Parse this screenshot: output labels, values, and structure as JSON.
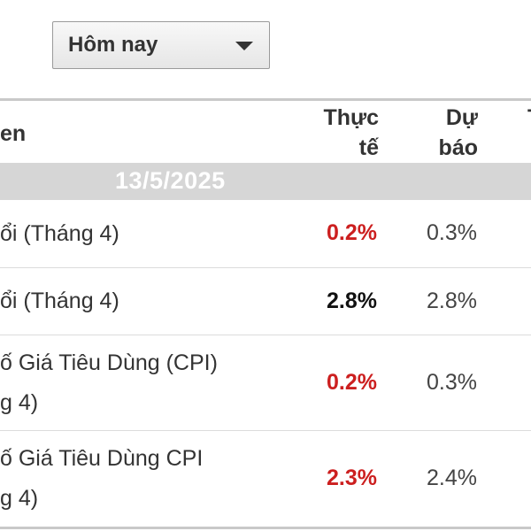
{
  "filter": {
    "selected": "Hôm nay",
    "arrow_icon": "caret-down-icon"
  },
  "table": {
    "headers": {
      "event": "en",
      "actual": "Thực tế",
      "forecast": "Dự báo",
      "next": "T"
    },
    "date": "13/5/2025",
    "rows": [
      {
        "event_lines": [
          "ổi (Tháng 4)"
        ],
        "actual": "0.2%",
        "actual_status": "negative",
        "forecast": "0.3%"
      },
      {
        "event_lines": [
          "ổi (Tháng 4)"
        ],
        "actual": "2.8%",
        "actual_status": "neutral",
        "forecast": "2.8%"
      },
      {
        "event_lines": [
          "ố Giá Tiêu Dùng (CPI)",
          "g 4)"
        ],
        "actual": "0.2%",
        "actual_status": "negative",
        "forecast": "0.3%"
      },
      {
        "event_lines": [
          "ố Giá Tiêu Dùng CPI",
          "g 4)"
        ],
        "actual": "2.3%",
        "actual_status": "negative",
        "forecast": "2.4%"
      }
    ],
    "colors": {
      "negative": "#cc1f1f",
      "neutral": "#111111",
      "date_band": "#d6d6d6"
    }
  }
}
